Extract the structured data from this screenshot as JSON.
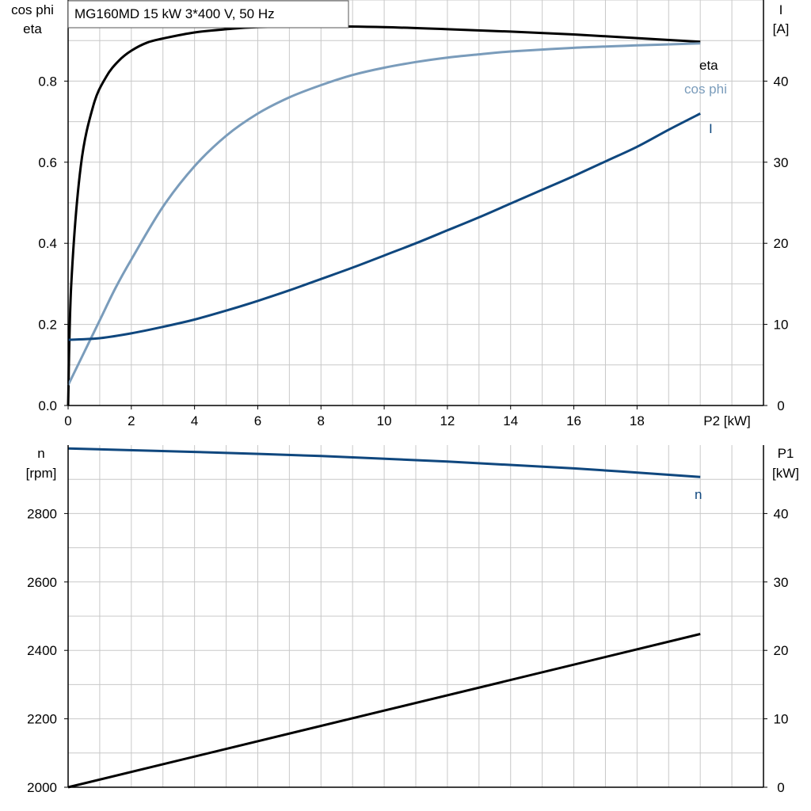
{
  "title": "MG160MD   15 kW   3*400 V, 50 Hz",
  "colors": {
    "eta": "#000000",
    "cos_phi": "#7a9cbb",
    "current": "#0f477e",
    "speed": "#0f477e",
    "p1": "#000000",
    "grid": "#c8c8c8"
  },
  "chart_data": [
    {
      "type": "line",
      "title": "MG160MD   15 kW   3*400 V, 50 Hz",
      "xlabel": "P2 [kW]",
      "ylabel_left": [
        "cos phi",
        "eta"
      ],
      "ylabel_right": [
        "I",
        "[A]"
      ],
      "xlim": [
        0,
        22
      ],
      "ylim_left": [
        0,
        1.0
      ],
      "ylim_right": [
        0,
        50
      ],
      "x_ticks": [
        0,
        2,
        4,
        6,
        8,
        10,
        12,
        14,
        16,
        18
      ],
      "y_left_ticks": [
        "0.0",
        "0.2",
        "0.4",
        "0.6",
        "0.8"
      ],
      "y_right_ticks": [
        "0",
        "10",
        "20",
        "30",
        "40"
      ],
      "grid": true,
      "series": [
        {
          "name": "eta",
          "axis": "left",
          "x": [
            0,
            0.1,
            0.4,
            0.8,
            1.2,
            1.6,
            2,
            2.5,
            3,
            4,
            5,
            6,
            8,
            10,
            12,
            14,
            16,
            18,
            20
          ],
          "y": [
            0.0,
            0.3,
            0.59,
            0.74,
            0.81,
            0.85,
            0.875,
            0.895,
            0.905,
            0.92,
            0.928,
            0.933,
            0.935,
            0.933,
            0.928,
            0.922,
            0.915,
            0.906,
            0.897
          ]
        },
        {
          "name": "cos phi",
          "axis": "left",
          "x": [
            0,
            0.5,
            1,
            1.5,
            2,
            3,
            4,
            5,
            6,
            7,
            8,
            9,
            10,
            11,
            12,
            13,
            14,
            16,
            18,
            20
          ],
          "y": [
            0.05,
            0.13,
            0.21,
            0.29,
            0.36,
            0.49,
            0.59,
            0.665,
            0.72,
            0.76,
            0.79,
            0.815,
            0.833,
            0.847,
            0.858,
            0.866,
            0.873,
            0.882,
            0.888,
            0.893
          ]
        },
        {
          "name": "I",
          "axis": "right",
          "x": [
            0,
            1,
            2,
            3,
            4,
            5,
            6,
            7,
            8,
            9,
            10,
            11,
            12,
            13,
            14,
            15,
            16,
            17,
            18,
            19,
            20
          ],
          "y": [
            8.1,
            8.3,
            8.9,
            9.7,
            10.6,
            11.7,
            12.9,
            14.2,
            15.6,
            17.0,
            18.5,
            20.0,
            21.6,
            23.2,
            24.9,
            26.6,
            28.3,
            30.1,
            31.9,
            34.0,
            36.0
          ]
        }
      ]
    },
    {
      "type": "line",
      "xlabel": "",
      "ylabel_left": [
        "n",
        "[rpm]"
      ],
      "ylabel_right": [
        "P1",
        "[kW]"
      ],
      "xlim": [
        0,
        22
      ],
      "ylim_left": [
        2000,
        3000
      ],
      "ylim_right": [
        0,
        50
      ],
      "y_left_ticks": [
        "2000",
        "2200",
        "2400",
        "2600",
        "2800"
      ],
      "y_right_ticks": [
        "0",
        "10",
        "20",
        "30",
        "40"
      ],
      "grid": true,
      "series": [
        {
          "name": "n",
          "axis": "left",
          "x": [
            0,
            4,
            8,
            12,
            16,
            20
          ],
          "y": [
            2990,
            2980,
            2968,
            2952,
            2932,
            2907
          ]
        },
        {
          "name": "",
          "axis": "right",
          "x": [
            0,
            20
          ],
          "y": [
            0,
            22.4
          ]
        }
      ]
    }
  ]
}
